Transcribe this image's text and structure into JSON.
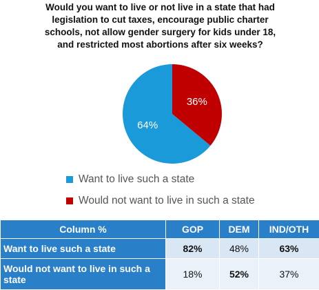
{
  "chart_data": {
    "type": "pie",
    "title": "Would you want to live or not live in a state that had legislation to cut taxes, encourage public charter schools, not allow gender surgery for kids under 18, and restricted most abortions after six weeks?",
    "categories": [
      "Want to live such a state",
      "Would not want to live in such a state"
    ],
    "values": [
      64,
      36
    ],
    "value_labels": [
      "64%",
      "36%"
    ],
    "colors": [
      "#1a9ad8",
      "#c00000"
    ]
  },
  "table": {
    "header": [
      "Column %",
      "GOP",
      "DEM",
      "IND/OTH"
    ],
    "rows": [
      {
        "label": "Want to live such a state",
        "cells": [
          "82%",
          "48%",
          "63%"
        ],
        "bold": [
          true,
          false,
          true
        ]
      },
      {
        "label": "Would not want to live in such a state",
        "cells": [
          "18%",
          "52%",
          "37%"
        ],
        "bold": [
          false,
          true,
          false
        ]
      }
    ]
  }
}
